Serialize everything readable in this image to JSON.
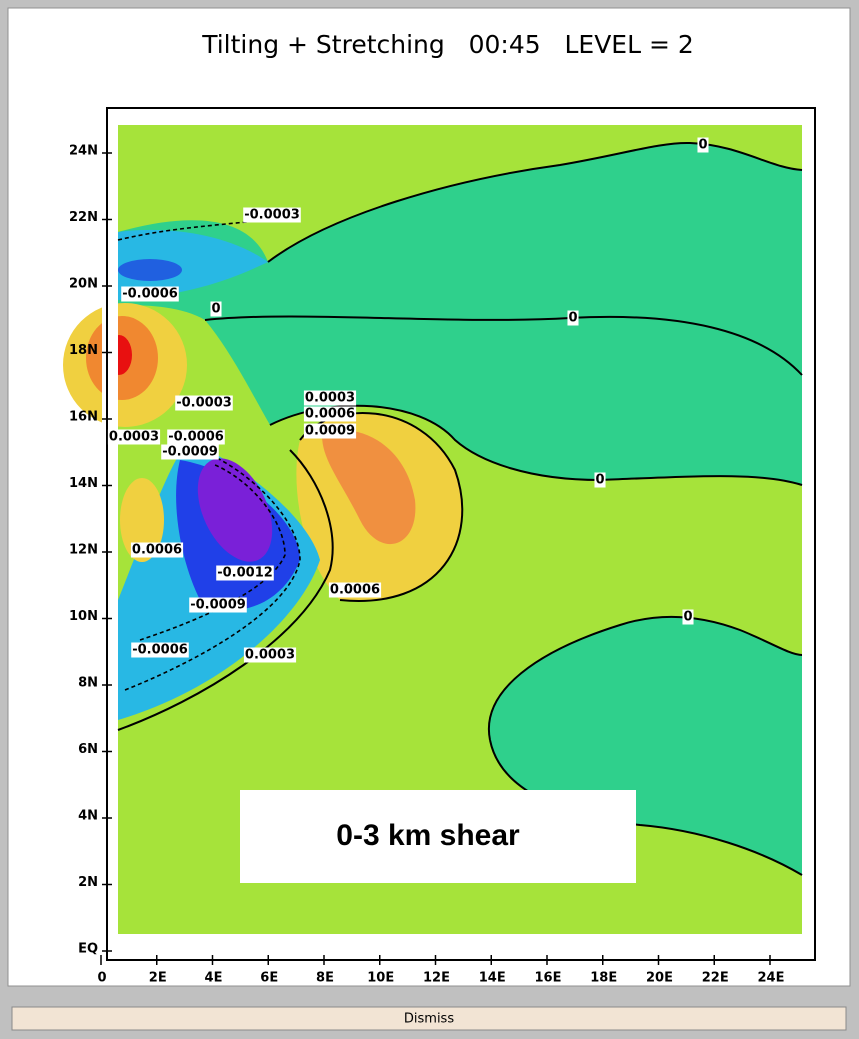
{
  "window": {
    "plot": {
      "title": "Tilting + Stretching   00:45   LEVEL = 2",
      "x_labels": [
        "0",
        "2E",
        "4E",
        "6E",
        "8E",
        "10E",
        "12E",
        "14E",
        "16E",
        "18E",
        "20E",
        "22E",
        "24E"
      ],
      "y_labels": [
        "EQ",
        "2N",
        "4N",
        "6N",
        "8N",
        "10N",
        "12N",
        "14N",
        "16N",
        "18N",
        "20N",
        "22N",
        "24N"
      ],
      "contour_labels": [
        "0",
        "-0.0003",
        "-0.0006",
        "0",
        "0",
        "-0.0003",
        "0.0003",
        "0.0006",
        "0.0009",
        "0.0003",
        "-0.0006",
        "-0.0009",
        "0",
        "0.0006",
        "-0.0012",
        "0.0006",
        "-0.0009",
        "0",
        "-0.0006",
        "0.0003"
      ],
      "annotation": "0-3 km shear"
    },
    "button": "Dismiss"
  }
}
